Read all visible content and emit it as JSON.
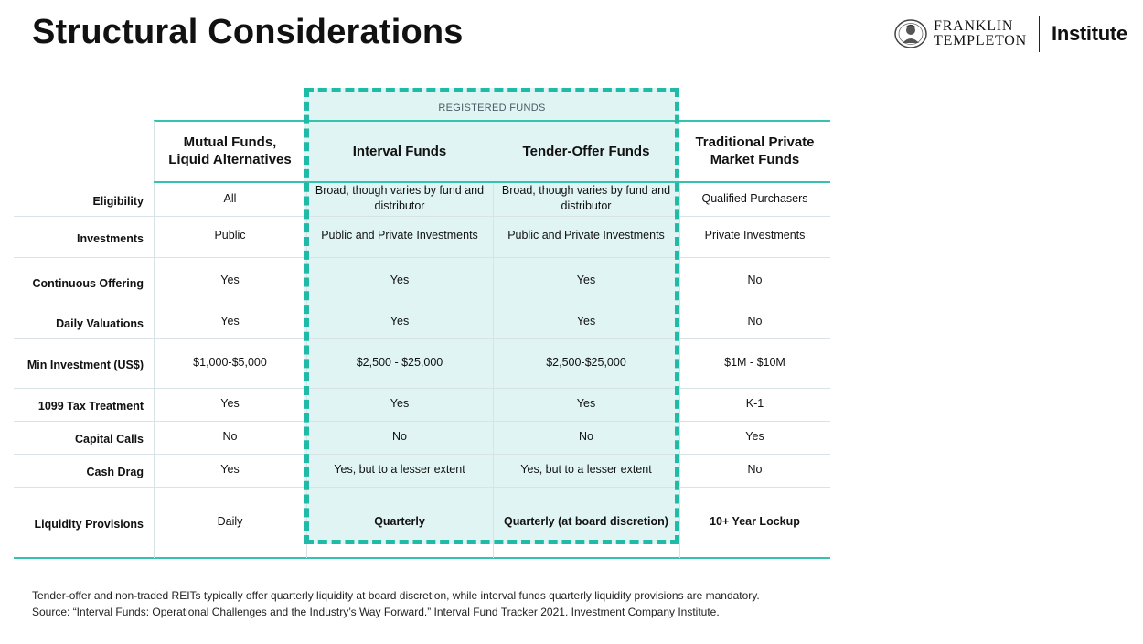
{
  "page_title": "Structural Considerations",
  "logo": {
    "brand_line1": "FRANKLIN",
    "brand_line2": "TEMPLETON",
    "suffix": "Institute",
    "seal_icon": "franklin-portrait-seal-icon"
  },
  "table": {
    "group_label": "REGISTERED FUNDS",
    "columns": [
      "Mutual Funds,\nLiquid Alternatives",
      "Interval Funds",
      "Tender-Offer Funds",
      "Traditional Private\nMarket Funds"
    ],
    "rows": [
      {
        "label": "Eligibility",
        "cells": [
          "All",
          "Broad, though varies by fund and distributor",
          "Broad, though varies by fund and distributor",
          "Qualified Purchasers"
        ]
      },
      {
        "label": "Investments",
        "cells": [
          "Public",
          "Public and Private Investments",
          "Public and Private Investments",
          "Private Investments"
        ]
      },
      {
        "label": "Continuous Offering",
        "cells": [
          "Yes",
          "Yes",
          "Yes",
          "No"
        ]
      },
      {
        "label": "Daily Valuations",
        "cells": [
          "Yes",
          "Yes",
          "Yes",
          "No"
        ]
      },
      {
        "label": "Min Investment (US$)",
        "cells": [
          "$1,000-$5,000",
          "$2,500 - $25,000",
          "$2,500-$25,000",
          "$1M - $10M"
        ]
      },
      {
        "label": "1099 Tax Treatment",
        "cells": [
          "Yes",
          "Yes",
          "Yes",
          "K-1"
        ]
      },
      {
        "label": "Capital Calls",
        "cells": [
          "No",
          "No",
          "No",
          "Yes"
        ]
      },
      {
        "label": "Cash Drag",
        "cells": [
          "Yes",
          "Yes, but to a lesser extent",
          "Yes, but to a lesser extent",
          "No"
        ]
      },
      {
        "label": "Liquidity Provisions",
        "cells": [
          "Daily",
          "Quarterly",
          "Quarterly (at board discretion)",
          "10+ Year Lockup"
        ]
      }
    ]
  },
  "footnote": {
    "line1": "Tender-offer and non-traded REITs typically offer quarterly liquidity at board discretion, while interval funds quarterly liquidity provisions are mandatory.",
    "line2": "Source: “Interval Funds: Operational Challenges and the Industry’s Way Forward.” Interval Fund Tracker 2021. Investment Company Institute."
  },
  "colors": {
    "accent_teal": "#1fbba6",
    "registered_fill": "#dff4f3"
  }
}
